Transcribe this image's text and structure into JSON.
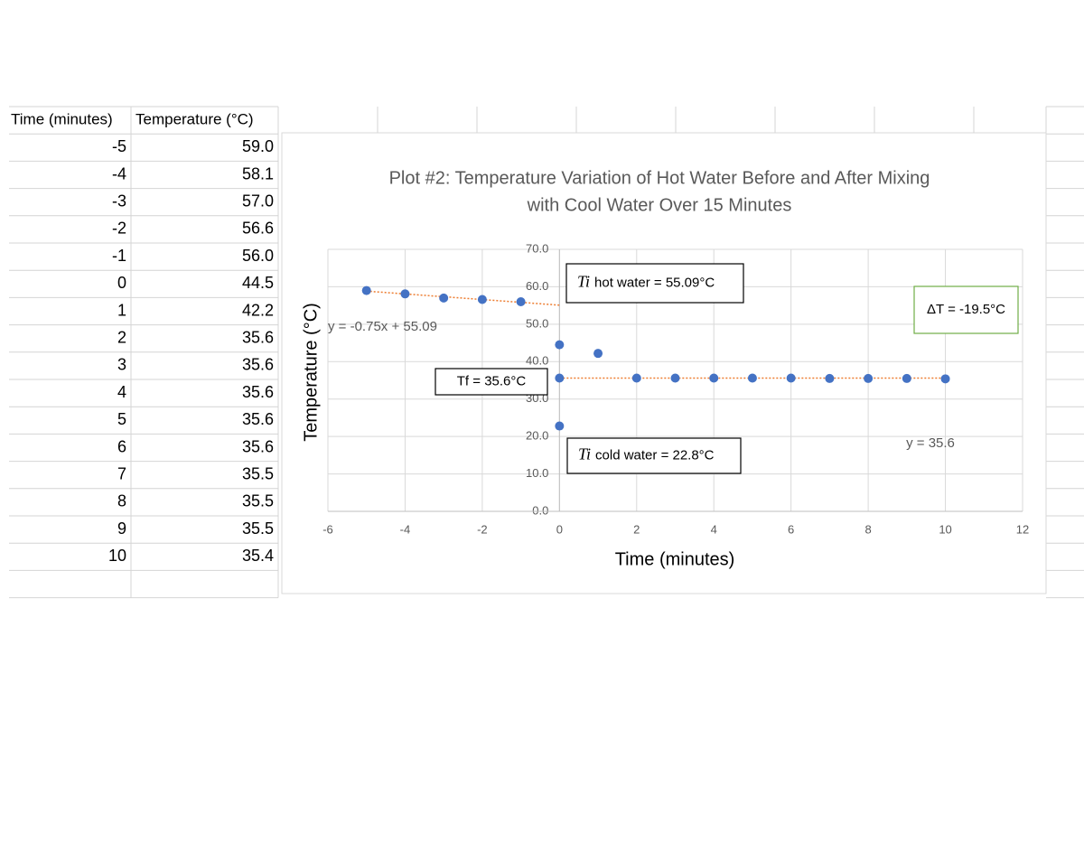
{
  "table": {
    "header": [
      "Time (minutes)",
      "Temperature (°C)"
    ],
    "rows": [
      [
        "-5",
        "59.0"
      ],
      [
        "-4",
        "58.1"
      ],
      [
        "-3",
        "57.0"
      ],
      [
        "-2",
        "56.6"
      ],
      [
        "-1",
        "56.0"
      ],
      [
        "0",
        "44.5"
      ],
      [
        "1",
        "42.2"
      ],
      [
        "2",
        "35.6"
      ],
      [
        "3",
        "35.6"
      ],
      [
        "4",
        "35.6"
      ],
      [
        "5",
        "35.6"
      ],
      [
        "6",
        "35.6"
      ],
      [
        "7",
        "35.5"
      ],
      [
        "8",
        "35.5"
      ],
      [
        "9",
        "35.5"
      ],
      [
        "10",
        "35.4"
      ]
    ]
  },
  "chart_data": {
    "type": "scatter",
    "title": "Plot #2: Temperature Variation of Hot Water Before and After Mixing",
    "subtitle": "with Cool Water Over 15 Minutes",
    "x_label": "Time (minutes)",
    "y_label": "Temperature (°C)",
    "series": [
      {
        "color": "#4472c4",
        "x": [
          -5,
          -4,
          -3,
          -2,
          -1
        ],
        "values": [
          59.0,
          58.1,
          57.0,
          56.6,
          56.0
        ]
      },
      {
        "color": "#4472c4",
        "x": [
          0,
          1,
          2,
          3,
          4,
          5,
          6,
          7,
          8,
          9,
          10
        ],
        "values": [
          44.5,
          42.2,
          35.6,
          35.6,
          35.6,
          35.6,
          35.6,
          35.5,
          35.5,
          35.5,
          35.4
        ]
      },
      {
        "color": "#4472c4",
        "x": [
          0,
          0
        ],
        "values": [
          22.8,
          35.6
        ]
      }
    ],
    "trendlines": [
      {
        "slope": -0.75,
        "intercept": 55.09,
        "xrange": [
          -5,
          0
        ],
        "label": "y = -0.75x + 55.09",
        "color": "#ed7d31"
      },
      {
        "slope": 0,
        "intercept": 35.6,
        "xrange": [
          0,
          10
        ],
        "label": "y = 35.6",
        "color": "#ed7d31"
      }
    ],
    "annotations": [
      {
        "prefix": "Ti",
        "text": "hot water = 55.09°C"
      },
      {
        "text": "Tf = 35.6°C"
      },
      {
        "prefix": "Ti",
        "text": "cold water = 22.8°C"
      },
      {
        "text": "ΔT = -19.5°C",
        "color": "#70ad47"
      }
    ],
    "xlim": [
      -6,
      12
    ],
    "xticks": [
      -6,
      -4,
      -2,
      0,
      2,
      4,
      6,
      8,
      10,
      12
    ],
    "ylim": [
      0,
      70
    ],
    "yticks": [
      {
        "value": 0,
        "label": "0.0"
      },
      {
        "value": 10,
        "label": "10.0"
      },
      {
        "value": 20,
        "label": "20.0"
      },
      {
        "value": 30,
        "label": "30.0"
      },
      {
        "value": 40,
        "label": "40.0"
      },
      {
        "value": 50,
        "label": "50.0"
      },
      {
        "value": 60,
        "label": "60.0"
      },
      {
        "value": 70,
        "label": "70.0"
      }
    ],
    "grid": true
  }
}
